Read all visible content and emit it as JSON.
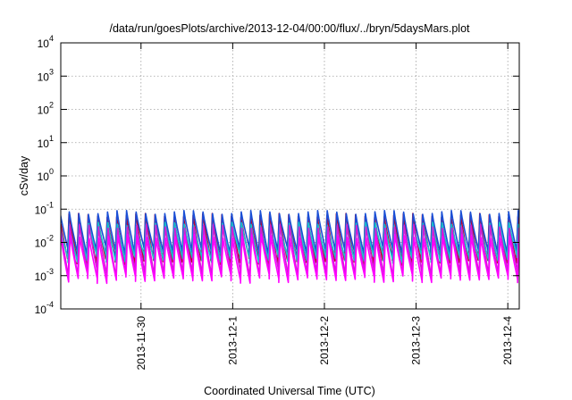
{
  "chart_data": {
    "type": "line",
    "title": "/data/run/goesPlots/archive/2013-12-04/00:00/flux/../bryn/5daysMars.plot",
    "xlabel": "Coordinated Universal Time (UTC)",
    "ylabel": "cSv/day",
    "y_scale": "log",
    "ylim": [
      0.0001,
      10000
    ],
    "y_ticks": [
      {
        "value": 0.0001,
        "base": "10",
        "exp": "-4"
      },
      {
        "value": 0.001,
        "base": "10",
        "exp": "-3"
      },
      {
        "value": 0.01,
        "base": "10",
        "exp": "-2"
      },
      {
        "value": 0.1,
        "base": "10",
        "exp": "-1"
      },
      {
        "value": 1,
        "base": "10",
        "exp": "0"
      },
      {
        "value": 10,
        "base": "10",
        "exp": "1"
      },
      {
        "value": 100,
        "base": "10",
        "exp": "2"
      },
      {
        "value": 1000,
        "base": "10",
        "exp": "3"
      },
      {
        "value": 10000,
        "base": "10",
        "exp": "4"
      }
    ],
    "xlim": [
      "2013-11-29T03:00",
      "2013-12-04T03:00"
    ],
    "x_ticks": [
      "2013-11-30",
      "2013-12-1",
      "2013-12-2",
      "2013-12-3",
      "2013-12-4"
    ],
    "x_tick_dates": [
      "2013-11-30T00:00",
      "2013-12-01T00:00",
      "2013-12-02T00:00",
      "2013-12-03T00:00",
      "2013-12-04T00:00"
    ],
    "grid": true,
    "legend": "none",
    "oscillation_period_hours": 2.5,
    "series": [
      {
        "color": "#c0002a",
        "peak": 0.065,
        "trough": 0.0028
      },
      {
        "color": "#1a4fd6",
        "peak": 0.08,
        "trough": 0.0055
      },
      {
        "color": "#16c4cc",
        "peak": 0.035,
        "trough": 0.0032
      },
      {
        "color": "#d21bd8",
        "peak": 0.03,
        "trough": 0.0012
      },
      {
        "color": "#ff00ff",
        "peak": 0.015,
        "trough": 0.0008
      }
    ]
  }
}
